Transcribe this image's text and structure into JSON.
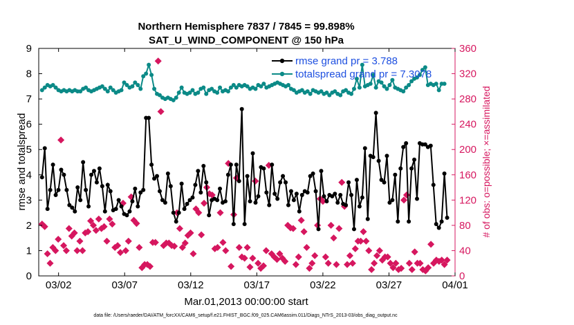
{
  "chart_data": {
    "type": "line",
    "title_line1": "Northern Hemisphere 7837 / 7845 = 99.898%",
    "title_line2": "SAT_U_WIND_COMPONENT @ 150 hPa",
    "xlabel": "Mar.01,2013 00:00:00 start",
    "ylabel": "rmse and totalspread",
    "ylabel_right": "# of obs: o=possible; ×=assimilated",
    "footer": "data file: /Users/raeder/DAI/ATM_forcXX/CAM6_setup/f.e21.FHIST_BGC.f09_025.CAM6assim.011/Diags_NTrS_2013-03/obs_diag_output.nc",
    "xlim": [
      0.5,
      31.2
    ],
    "ylim": [
      0,
      9
    ],
    "ylim_right": [
      0,
      360
    ],
    "x_ticks": [
      {
        "x": 2,
        "label": "03/02"
      },
      {
        "x": 7,
        "label": "03/07"
      },
      {
        "x": 12,
        "label": "03/12"
      },
      {
        "x": 17,
        "label": "03/17"
      },
      {
        "x": 22,
        "label": "03/22"
      },
      {
        "x": 27,
        "label": "03/27"
      },
      {
        "x": 32,
        "label": "04/01"
      }
    ],
    "y_ticks": [
      "0",
      "1",
      "2",
      "3",
      "4",
      "5",
      "6",
      "7",
      "8",
      "9"
    ],
    "y_ticks_right": [
      "0",
      "40",
      "80",
      "120",
      "160",
      "200",
      "240",
      "280",
      "320",
      "360"
    ],
    "legend": [
      {
        "label": "rmse grand pr = 3.788",
        "color": "#000000"
      },
      {
        "label": "totalspread grand pr = 7.3078",
        "color": "#0b8a87"
      }
    ],
    "rmse": [
      3.9,
      5.05,
      2.65,
      3.4,
      4.4,
      3.2,
      3.4,
      4.2,
      4.0,
      3.4,
      2.8,
      2.7,
      2.55,
      3.5,
      3.0,
      4.5,
      3.4,
      2.75,
      4.0,
      4.15,
      3.7,
      4.25,
      3.55,
      2.55,
      3.6,
      3.35,
      2.6,
      2.65,
      3.0,
      2.75,
      2.45,
      2.4,
      2.55,
      2.95,
      3.45,
      2.75,
      3.3,
      3.4,
      6.25,
      6.25,
      4.4,
      3.85,
      3.95,
      3.35,
      3.0,
      2.9,
      4.05,
      3.55,
      2.5,
      2.15,
      2.5,
      3.65,
      2.65,
      2.85,
      3.0,
      3.1,
      3.6,
      4.15,
      3.3,
      4.35,
      3.7,
      2.4,
      3.0,
      3.05,
      3.0,
      3.45,
      2.9,
      2.95,
      4.0,
      4.4,
      2.05,
      4.4,
      3.75,
      6.6,
      2.05,
      3.95,
      2.95,
      4.85,
      2.9,
      3.15,
      4.3,
      4.25,
      3.3,
      2.8,
      4.4,
      3.25,
      3.05,
      3.7,
      3.95,
      3.7,
      2.8,
      3.35,
      3.0,
      3.25,
      2.55,
      3.2,
      3.35,
      3.3,
      3.95,
      4.05,
      3.35,
      1.85,
      4.15,
      3.15,
      2.95,
      3.2,
      3.15,
      3.25,
      2.9,
      3.2,
      2.85,
      2.8,
      3.7,
      3.2,
      1.85,
      3.8,
      2.75,
      3.1,
      5.05,
      2.25,
      4.75,
      4.7,
      6.45,
      4.55,
      3.8,
      3.7,
      4.75,
      2.9,
      3.0,
      4.0,
      2.15,
      4.25,
      5.1,
      5.25,
      2.15,
      4.25,
      4.6,
      3.05,
      5.25,
      5.2,
      5.2,
      5.1,
      5.15,
      3.6,
      2.05,
      1.9,
      2.15,
      4.05,
      2.3
    ],
    "totalspread": [
      7.35,
      7.45,
      7.55,
      7.5,
      7.55,
      7.45,
      7.35,
      7.3,
      7.35,
      7.3,
      7.35,
      7.3,
      7.35,
      7.3,
      7.3,
      7.4,
      7.45,
      7.35,
      7.3,
      7.35,
      7.4,
      7.45,
      7.5,
      7.4,
      7.3,
      7.45,
      7.35,
      7.25,
      7.3,
      7.35,
      7.65,
      7.55,
      7.45,
      7.5,
      7.65,
      7.55,
      7.4,
      7.9,
      8.0,
      8.35,
      7.95,
      7.4,
      7.2,
      7.15,
      7.05,
      7.0,
      7.05,
      7.0,
      6.95,
      7.05,
      7.25,
      7.45,
      7.25,
      7.2,
      7.25,
      7.35,
      7.2,
      7.25,
      7.4,
      7.45,
      7.2,
      7.35,
      7.4,
      7.3,
      7.25,
      7.45,
      7.3,
      7.35,
      7.3,
      7.45,
      7.55,
      7.45,
      7.55,
      7.5,
      7.55,
      7.5,
      7.4,
      7.45,
      7.4,
      7.55,
      7.5,
      7.6,
      7.45,
      7.5,
      7.55,
      7.6,
      7.65,
      7.6,
      7.55,
      7.5,
      7.55,
      7.4,
      7.35,
      7.25,
      7.3,
      7.35,
      7.25,
      7.3,
      7.2,
      7.35,
      7.3,
      7.25,
      7.3,
      7.2,
      7.25,
      7.15,
      7.25,
      7.3,
      7.2,
      7.15,
      7.3,
      7.35,
      7.25,
      7.2,
      7.4,
      7.8,
      7.45,
      8.35,
      7.5,
      7.55,
      7.6,
      7.95,
      7.45,
      7.7,
      7.65,
      7.5,
      7.4,
      7.55,
      7.75,
      7.45,
      7.4,
      7.35,
      7.3,
      7.45,
      7.55,
      7.7,
      7.8,
      7.85,
      7.95,
      8.15,
      8.25,
      7.55,
      7.6,
      7.55,
      7.6,
      7.35,
      7.6,
      7.6
    ],
    "obs_possible": [
      82,
      78,
      35,
      20,
      45,
      40,
      58,
      215,
      48,
      40,
      75,
      63,
      68,
      40,
      55,
      40,
      68,
      70,
      87,
      80,
      72,
      90,
      75,
      78,
      55,
      90,
      82,
      45,
      48,
      37,
      115,
      40,
      55,
      125,
      88,
      83,
      45,
      13,
      18,
      18,
      15,
      53,
      53,
      340,
      260,
      48,
      52,
      52,
      48,
      47,
      100,
      75,
      45,
      52,
      64,
      68,
      35,
      106,
      100,
      65,
      115,
      140,
      130,
      128,
      43,
      45,
      100,
      53,
      40,
      178,
      15,
      97,
      155,
      45,
      30,
      28,
      45,
      14,
      28,
      150,
      20,
      12,
      16,
      40,
      175,
      35,
      30,
      26,
      35,
      28,
      23,
      80,
      76,
      75,
      18,
      30,
      88,
      70,
      45,
      12,
      20,
      32,
      80,
      122,
      118,
      30,
      20,
      80,
      60,
      18,
      75,
      148,
      110,
      18,
      32,
      20,
      43,
      55,
      55,
      70,
      55,
      40,
      10,
      20,
      32,
      40,
      25,
      30,
      30,
      20,
      13,
      20,
      10,
      12,
      120,
      128,
      20,
      10,
      38,
      20,
      20,
      10,
      8,
      13,
      50,
      20,
      25,
      23,
      25,
      18,
      25
    ],
    "obs_pointer": "obs_possible drawn as filled markers over the series window"
  }
}
